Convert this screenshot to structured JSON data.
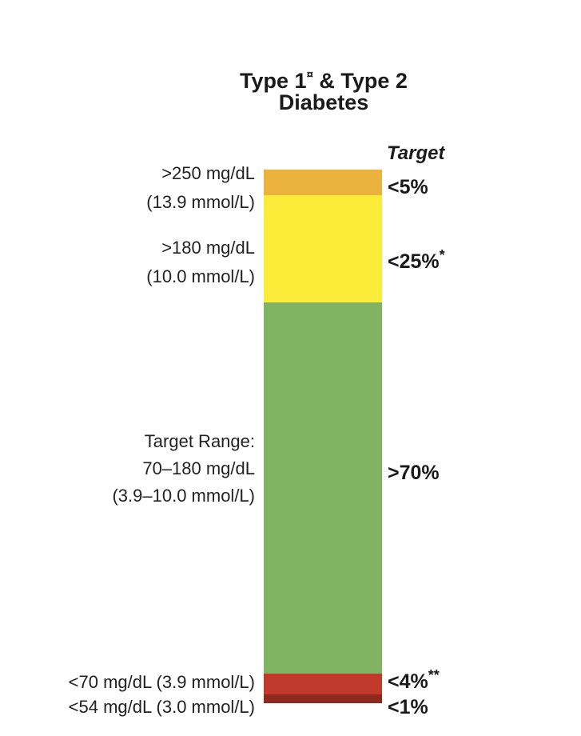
{
  "chart_data": {
    "type": "stacked-bar",
    "title_main": "Type 1",
    "title_mark": "¤",
    "title_rest": "& Type 2",
    "title_line2": "Diabetes",
    "target_header": "Target",
    "unit_note": "",
    "segments": [
      {
        "id": "very-high",
        "lines": [
          ">250 mg/dL",
          "(13.9 mmol/L)"
        ],
        "target": "<5%",
        "target_mark": "",
        "color": "#EBB23E",
        "value": 5
      },
      {
        "id": "high",
        "lines": [
          ">180 mg/dL",
          "(10.0 mmol/L)"
        ],
        "target": "<25%",
        "target_mark": "*",
        "color": "#FCEC3A",
        "value": 20
      },
      {
        "id": "in-range",
        "lines": [
          "Target Range:",
          "70–180 mg/dL",
          "(3.9–10.0 mmol/L)"
        ],
        "target": ">70%",
        "target_mark": "",
        "color": "#80B462",
        "value": 70
      },
      {
        "id": "low",
        "lines": [
          "<70 mg/dL (3.9 mmol/L)"
        ],
        "target": "<4%",
        "target_mark": "**",
        "color": "#C0392B",
        "value": 3
      },
      {
        "id": "very-low",
        "lines": [
          "<54 mg/dL (3.0 mmol/L)"
        ],
        "target": "<1%",
        "target_mark": "",
        "color": "#8E2A1D",
        "value": 1
      }
    ]
  }
}
